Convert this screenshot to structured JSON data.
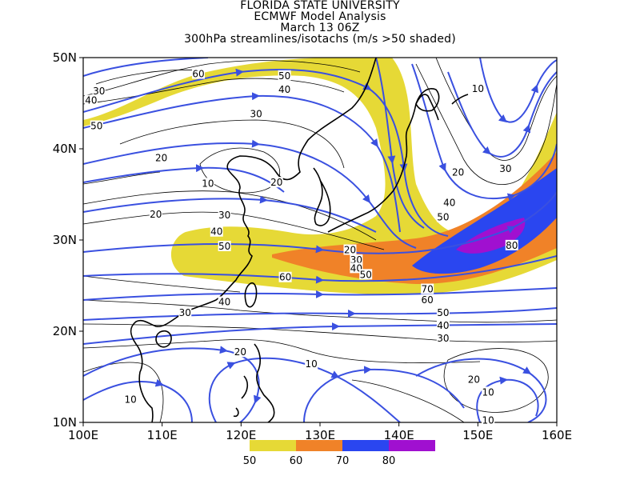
{
  "titles": {
    "line1": "FLORIDA STATE UNIVERSITY",
    "line2": "ECMWF Model Analysis",
    "line3": "March 13 06Z",
    "line4": "300hPa streamlines/isotachs (m/s >50 shaded)"
  },
  "axes": {
    "lat_labels": [
      "50N",
      "40N",
      "30N",
      "20N",
      "10N"
    ],
    "lon_labels": [
      "100E",
      "110E",
      "120E",
      "130E",
      "140E",
      "150E",
      "160E"
    ],
    "lat_range": [
      10,
      50
    ],
    "lon_range": [
      100,
      160
    ]
  },
  "shading": {
    "colors": {
      "50": "#e6d936",
      "60": "#f08228",
      "70": "#2a46f0",
      "80": "#a010d0"
    },
    "legend_labels": [
      "50",
      "60",
      "70",
      "80"
    ]
  },
  "colors": {
    "streamline": "#3a50e0",
    "contour": "#000000",
    "coastline": "#000000"
  },
  "contour_labels": [
    {
      "text": "30",
      "lon": 102.0,
      "lat": 46.3
    },
    {
      "text": "40",
      "lon": 101.0,
      "lat": 45.3
    },
    {
      "text": "50",
      "lon": 101.7,
      "lat": 42.5
    },
    {
      "text": "60",
      "lon": 114.6,
      "lat": 48.2
    },
    {
      "text": "50",
      "lon": 125.5,
      "lat": 48.0
    },
    {
      "text": "40",
      "lon": 125.5,
      "lat": 46.5
    },
    {
      "text": "30",
      "lon": 121.9,
      "lat": 43.8
    },
    {
      "text": "20",
      "lon": 109.9,
      "lat": 39.0
    },
    {
      "text": "10",
      "lon": 115.8,
      "lat": 36.2
    },
    {
      "text": "20",
      "lon": 124.5,
      "lat": 36.3
    },
    {
      "text": "20",
      "lon": 109.2,
      "lat": 32.8
    },
    {
      "text": "30",
      "lon": 117.9,
      "lat": 32.7
    },
    {
      "text": "40",
      "lon": 116.9,
      "lat": 30.9
    },
    {
      "text": "50",
      "lon": 117.9,
      "lat": 29.3
    },
    {
      "text": "20",
      "lon": 133.8,
      "lat": 28.9
    },
    {
      "text": "30",
      "lon": 134.6,
      "lat": 27.8
    },
    {
      "text": "40",
      "lon": 134.6,
      "lat": 26.9
    },
    {
      "text": "50",
      "lon": 135.8,
      "lat": 26.2
    },
    {
      "text": "60",
      "lon": 125.6,
      "lat": 25.9
    },
    {
      "text": "10",
      "lon": 150.0,
      "lat": 46.6
    },
    {
      "text": "20",
      "lon": 147.5,
      "lat": 37.4
    },
    {
      "text": "30",
      "lon": 153.5,
      "lat": 37.8
    },
    {
      "text": "40",
      "lon": 146.4,
      "lat": 34.1
    },
    {
      "text": "50",
      "lon": 145.6,
      "lat": 32.5
    },
    {
      "text": "80",
      "lon": 154.3,
      "lat": 29.4
    },
    {
      "text": "70",
      "lon": 143.6,
      "lat": 24.6
    },
    {
      "text": "60",
      "lon": 143.6,
      "lat": 23.4
    },
    {
      "text": "50",
      "lon": 145.6,
      "lat": 22.0
    },
    {
      "text": "40",
      "lon": 145.6,
      "lat": 20.6
    },
    {
      "text": "30",
      "lon": 145.6,
      "lat": 19.2
    },
    {
      "text": "40",
      "lon": 117.9,
      "lat": 23.2
    },
    {
      "text": "30",
      "lon": 112.9,
      "lat": 22.0
    },
    {
      "text": "20",
      "lon": 119.9,
      "lat": 17.7
    },
    {
      "text": "10",
      "lon": 128.9,
      "lat": 16.4
    },
    {
      "text": "20",
      "lon": 149.5,
      "lat": 14.7
    },
    {
      "text": "10",
      "lon": 151.3,
      "lat": 13.3
    },
    {
      "text": "10",
      "lon": 106.0,
      "lat": 12.5
    },
    {
      "text": "10",
      "lon": 151.3,
      "lat": 10.2
    }
  ]
}
